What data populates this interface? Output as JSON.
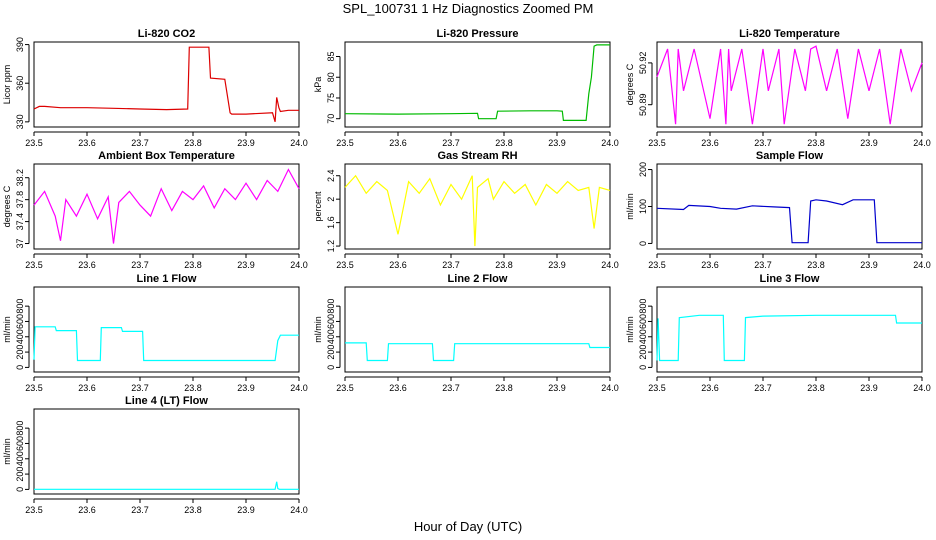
{
  "figure": {
    "title": "SPL_100731  1 Hz Diagnostics Zoomed PM",
    "xlabel": "Hour of Day (UTC)"
  },
  "chart_data": [
    {
      "type": "line",
      "title": "Li-820 CO2",
      "xlabel": "",
      "ylabel": "Licor ppm",
      "color": "#dd0000",
      "xlim": [
        23.5,
        24.0
      ],
      "ylim": [
        326,
        392
      ],
      "xticks": [
        "23.5",
        "23.6",
        "23.7",
        "23.8",
        "23.9",
        "24.0"
      ],
      "yticks": [
        330,
        360,
        390
      ],
      "series": [
        {
          "x": [
            23.5,
            23.51,
            23.52,
            23.55,
            23.6,
            23.65,
            23.7,
            23.75,
            23.79,
            23.793,
            23.8,
            23.83,
            23.833,
            23.86,
            23.87,
            23.873,
            23.9,
            23.95,
            23.955,
            23.958,
            23.962,
            23.965,
            23.98,
            24.0
          ],
          "y": [
            340,
            342,
            342,
            341,
            341,
            340.5,
            340,
            339.5,
            340,
            388,
            388,
            388,
            364,
            363,
            337,
            336,
            336,
            337,
            330,
            349,
            341,
            338,
            339,
            339
          ]
        }
      ]
    },
    {
      "type": "line",
      "title": "Li-820 Pressure",
      "xlabel": "",
      "ylabel": "kPa",
      "color": "#00bb00",
      "xlim": [
        23.5,
        24.0
      ],
      "ylim": [
        68,
        88.5
      ],
      "xticks": [
        "23.5",
        "23.6",
        "23.7",
        "23.8",
        "23.9",
        "24.0"
      ],
      "yticks": [
        70,
        75,
        80,
        85
      ],
      "series": [
        {
          "x": [
            23.5,
            23.6,
            23.7,
            23.75,
            23.752,
            23.785,
            23.788,
            23.85,
            23.9,
            23.91,
            23.912,
            23.95,
            23.955,
            23.96,
            23.965,
            23.97,
            23.975,
            24.0
          ],
          "y": [
            71.2,
            71.1,
            71.2,
            71.3,
            70,
            70,
            71.8,
            71.9,
            71.9,
            71.8,
            69.6,
            69.6,
            69.6,
            76,
            80,
            87.5,
            87.8,
            87.8
          ]
        }
      ]
    },
    {
      "type": "line",
      "title": "Li-820 Temperature",
      "xlabel": "",
      "ylabel": "degrees C",
      "color": "#ff00ff",
      "xlim": [
        23.5,
        24.0
      ],
      "ylim": [
        50.874,
        50.935
      ],
      "xticks": [
        "23.5",
        "23.6",
        "23.7",
        "23.8",
        "23.9",
        "24.0"
      ],
      "yticks": [
        50.89,
        50.92
      ],
      "series": [
        {
          "x": [
            23.5,
            23.52,
            23.535,
            23.54,
            23.55,
            23.57,
            23.6,
            23.62,
            23.63,
            23.635,
            23.64,
            23.66,
            23.68,
            23.7,
            23.71,
            23.73,
            23.74,
            23.76,
            23.78,
            23.79,
            23.8,
            23.82,
            23.84,
            23.86,
            23.88,
            23.9,
            23.92,
            23.94,
            23.96,
            23.98,
            24.0
          ],
          "y": [
            50.91,
            50.93,
            50.876,
            50.93,
            50.9,
            50.93,
            50.88,
            50.93,
            50.876,
            50.93,
            50.9,
            50.93,
            50.876,
            50.93,
            50.9,
            50.93,
            50.876,
            50.93,
            50.9,
            50.93,
            50.932,
            50.9,
            50.93,
            50.88,
            50.93,
            50.9,
            50.93,
            50.876,
            50.93,
            50.9,
            50.92
          ]
        }
      ]
    },
    {
      "type": "line",
      "title": "Ambient Box Temperature",
      "xlabel": "",
      "ylabel": "degrees C",
      "color": "#ff00ff",
      "xlim": [
        23.5,
        24.0
      ],
      "ylim": [
        36.9,
        38.45
      ],
      "xticks": [
        "23.5",
        "23.6",
        "23.7",
        "23.8",
        "23.9",
        "24.0"
      ],
      "yticks": [
        37.0,
        37.4,
        37.8,
        38.2
      ],
      "series": [
        {
          "x": [
            23.5,
            23.52,
            23.54,
            23.55,
            23.56,
            23.58,
            23.6,
            23.62,
            23.64,
            23.65,
            23.66,
            23.68,
            23.7,
            23.72,
            23.74,
            23.76,
            23.78,
            23.8,
            23.82,
            23.84,
            23.86,
            23.88,
            23.9,
            23.92,
            23.94,
            23.96,
            23.98,
            24.0
          ],
          "y": [
            37.7,
            37.95,
            37.5,
            37.05,
            37.8,
            37.5,
            37.9,
            37.45,
            37.85,
            37.0,
            37.75,
            37.95,
            37.7,
            37.5,
            38.0,
            37.6,
            37.95,
            37.8,
            38.05,
            37.65,
            38.0,
            37.8,
            38.1,
            37.8,
            38.15,
            37.95,
            38.35,
            38.0
          ]
        }
      ]
    },
    {
      "type": "line",
      "title": "Gas Stream RH",
      "xlabel": "",
      "ylabel": "percent",
      "color": "#ffff00",
      "xlim": [
        23.5,
        24.0
      ],
      "ylim": [
        1.15,
        2.6
      ],
      "xticks": [
        "23.5",
        "23.6",
        "23.7",
        "23.8",
        "23.9",
        "24.0"
      ],
      "yticks": [
        1.2,
        1.6,
        2.0,
        2.4
      ],
      "series": [
        {
          "x": [
            23.5,
            23.52,
            23.54,
            23.56,
            23.58,
            23.6,
            23.62,
            23.64,
            23.66,
            23.68,
            23.7,
            23.72,
            23.74,
            23.745,
            23.75,
            23.77,
            23.78,
            23.8,
            23.82,
            23.84,
            23.86,
            23.88,
            23.9,
            23.92,
            23.94,
            23.96,
            23.97,
            23.98,
            24.0
          ],
          "y": [
            2.2,
            2.4,
            2.1,
            2.3,
            2.15,
            1.4,
            2.3,
            2.1,
            2.35,
            1.9,
            2.25,
            2.0,
            2.4,
            1.2,
            2.2,
            2.35,
            2.0,
            2.3,
            2.1,
            2.25,
            1.9,
            2.25,
            2.1,
            2.3,
            2.15,
            2.2,
            1.5,
            2.2,
            2.15
          ]
        }
      ]
    },
    {
      "type": "line",
      "title": "Sample Flow",
      "xlabel": "",
      "ylabel": "ml/min",
      "color": "#0000cc",
      "xlim": [
        23.5,
        24.0
      ],
      "ylim": [
        -15,
        215
      ],
      "xticks": [
        "23.5",
        "23.6",
        "23.7",
        "23.8",
        "23.9",
        "24.0"
      ],
      "yticks": [
        0,
        100,
        200
      ],
      "series": [
        {
          "x": [
            23.5,
            23.55,
            23.56,
            23.6,
            23.62,
            23.65,
            23.68,
            23.72,
            23.75,
            23.755,
            23.785,
            23.79,
            23.8,
            23.82,
            23.85,
            23.87,
            23.91,
            23.915,
            23.95,
            24.0
          ],
          "y": [
            95,
            92,
            103,
            100,
            95,
            93,
            102,
            99,
            97,
            2,
            2,
            115,
            118,
            115,
            105,
            118,
            118,
            2,
            2,
            2
          ]
        }
      ]
    },
    {
      "type": "line",
      "title": "Line 1 Flow",
      "xlabel": "",
      "ylabel": "ml/min",
      "color": "#00ffff",
      "xlim": [
        23.5,
        24.0
      ],
      "ylim": [
        -60,
        1050
      ],
      "xticks": [
        "23.5",
        "23.6",
        "23.7",
        "23.8",
        "23.9",
        "24.0"
      ],
      "yticks": [
        0,
        200,
        400,
        600,
        800
      ],
      "series": [
        {
          "x": [
            23.5,
            23.502,
            23.54,
            23.542,
            23.58,
            23.582,
            23.625,
            23.627,
            23.665,
            23.667,
            23.705,
            23.707,
            23.8,
            23.9,
            23.955,
            23.96,
            23.965,
            24.0
          ],
          "y": [
            100,
            530,
            530,
            480,
            480,
            90,
            90,
            520,
            520,
            470,
            470,
            90,
            90,
            90,
            90,
            350,
            420,
            420
          ]
        }
      ]
    },
    {
      "type": "line",
      "title": "Line 2 Flow",
      "xlabel": "",
      "ylabel": "ml/min",
      "color": "#00ffff",
      "xlim": [
        23.5,
        24.0
      ],
      "ylim": [
        -60,
        1050
      ],
      "xticks": [
        "23.5",
        "23.6",
        "23.7",
        "23.8",
        "23.9",
        "24.0"
      ],
      "yticks": [
        0,
        200,
        400,
        600,
        800
      ],
      "series": [
        {
          "x": [
            23.5,
            23.54,
            23.542,
            23.58,
            23.582,
            23.665,
            23.667,
            23.705,
            23.707,
            23.8,
            23.96,
            23.962,
            24.0
          ],
          "y": [
            320,
            320,
            90,
            90,
            310,
            310,
            90,
            90,
            310,
            310,
            310,
            260,
            260
          ]
        }
      ]
    },
    {
      "type": "line",
      "title": "Line 3 Flow",
      "xlabel": "",
      "ylabel": "ml/min",
      "color": "#00ffff",
      "xlim": [
        23.5,
        24.0
      ],
      "ylim": [
        -60,
        1050
      ],
      "xticks": [
        "23.5",
        "23.6",
        "23.7",
        "23.8",
        "23.9",
        "24.0"
      ],
      "yticks": [
        0,
        200,
        400,
        600,
        800
      ],
      "series": [
        {
          "x": [
            23.5,
            23.502,
            23.505,
            23.54,
            23.542,
            23.58,
            23.625,
            23.627,
            23.665,
            23.667,
            23.7,
            23.8,
            23.95,
            23.952,
            24.0
          ],
          "y": [
            90,
            640,
            90,
            90,
            650,
            680,
            680,
            90,
            90,
            650,
            670,
            680,
            680,
            580,
            580
          ]
        }
      ]
    },
    {
      "type": "line",
      "title": "Line 4 (LT) Flow",
      "xlabel": "",
      "ylabel": "ml/min",
      "color": "#00ffff",
      "xlim": [
        23.5,
        24.0
      ],
      "ylim": [
        -60,
        1050
      ],
      "xticks": [
        "23.5",
        "23.6",
        "23.7",
        "23.8",
        "23.9",
        "24.0"
      ],
      "yticks": [
        0,
        200,
        400,
        600,
        800
      ],
      "series": [
        {
          "x": [
            23.5,
            23.6,
            23.7,
            23.8,
            23.9,
            23.955,
            23.958,
            23.96,
            23.963,
            24.0
          ],
          "y": [
            2,
            2,
            2,
            2,
            2,
            2,
            100,
            10,
            2,
            2
          ]
        }
      ]
    }
  ]
}
